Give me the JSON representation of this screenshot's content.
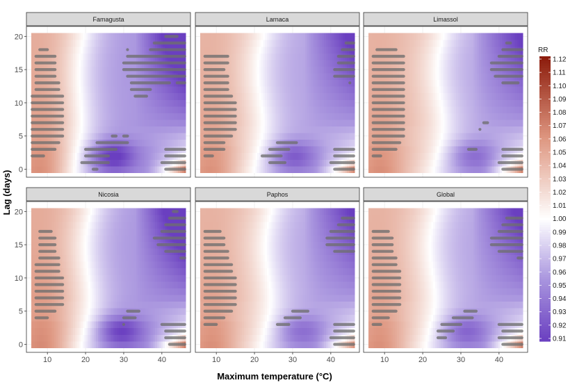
{
  "chart_data": {
    "type": "heatmap",
    "xlabel": "Maximum temperature (°C)",
    "ylabel": "Lag (days)",
    "xlim": [
      4.5,
      47.5
    ],
    "ylim": [
      -1.2,
      21.5
    ],
    "x_range": [
      6,
      46
    ],
    "y_range": [
      0,
      20
    ],
    "x_ticks": [
      10,
      20,
      30,
      40
    ],
    "y_ticks": [
      0,
      5,
      10,
      15,
      20
    ],
    "grid": true,
    "legend_position": "right",
    "colorbar": {
      "title": "RR",
      "min": 0.91,
      "max": 1.12,
      "ticks": [
        "1.12",
        "1.11",
        "1.10",
        "1.09",
        "1.08",
        "1.07",
        "1.06",
        "1.05",
        "1.04",
        "1.03",
        "1.02",
        "1.01",
        "1.00",
        "0.99",
        "0.98",
        "0.97",
        "0.96",
        "0.95",
        "0.94",
        "0.93",
        "0.92",
        "0.91"
      ],
      "low_color": "#6a3fc0",
      "mid_color": "#ffffff",
      "high_color": "#8b1a0a"
    },
    "panels": [
      {
        "name": "Famagusta",
        "params": {
          "xc": 19,
          "cw": 2.2,
          "cs": 1.0,
          "w": 0.045,
          "hot": 0.115,
          "hl": 0.05,
          "rot": 0.03,
          "lateCold": 0.085,
          "ec": 0.055
        },
        "sig": [
          {
            "lag": 18,
            "x0": 8,
            "x1": 10
          },
          {
            "lag": 17,
            "x0": 7,
            "x1": 12
          },
          {
            "lag": 16,
            "x0": 7,
            "x1": 12
          },
          {
            "lag": 15,
            "x0": 7,
            "x1": 12
          },
          {
            "lag": 14,
            "x0": 7,
            "x1": 12
          },
          {
            "lag": 13,
            "x0": 7,
            "x1": 13
          },
          {
            "lag": 12,
            "x0": 7,
            "x1": 13
          },
          {
            "lag": 11,
            "x0": 6,
            "x1": 14
          },
          {
            "lag": 10,
            "x0": 6,
            "x1": 14
          },
          {
            "lag": 9,
            "x0": 6,
            "x1": 14
          },
          {
            "lag": 8,
            "x0": 6,
            "x1": 14
          },
          {
            "lag": 7,
            "x0": 6,
            "x1": 14
          },
          {
            "lag": 6,
            "x0": 6,
            "x1": 14
          },
          {
            "lag": 5,
            "x0": 6,
            "x1": 14
          },
          {
            "lag": 4,
            "x0": 6,
            "x1": 13
          },
          {
            "lag": 3,
            "x0": 6,
            "x1": 12
          },
          {
            "lag": 2,
            "x0": 6,
            "x1": 9
          },
          {
            "lag": 20,
            "x0": 41,
            "x1": 44
          },
          {
            "lag": 19,
            "x0": 38,
            "x1": 46
          },
          {
            "lag": 18,
            "x0": 37,
            "x1": 46
          },
          {
            "lag": 17,
            "x0": 31,
            "x1": 46
          },
          {
            "lag": 16,
            "x0": 30,
            "x1": 46
          },
          {
            "lag": 15,
            "x0": 30,
            "x1": 46
          },
          {
            "lag": 14,
            "x0": 31,
            "x1": 46
          },
          {
            "lag": 13,
            "x0": 32,
            "x1": 42
          },
          {
            "lag": 12,
            "x0": 32,
            "x1": 37
          },
          {
            "lag": 11,
            "x0": 33,
            "x1": 36
          },
          {
            "lag": 13,
            "x0": 44,
            "x1": 46
          },
          {
            "lag": 18,
            "x0": 31,
            "x1": 31
          },
          {
            "lag": 5,
            "x0": 27,
            "x1": 28
          },
          {
            "lag": 5,
            "x0": 30,
            "x1": 31
          },
          {
            "lag": 4,
            "x0": 23,
            "x1": 31
          },
          {
            "lag": 3,
            "x0": 20,
            "x1": 28
          },
          {
            "lag": 2,
            "x0": 20,
            "x1": 26
          },
          {
            "lag": 1,
            "x0": 19,
            "x1": 26
          },
          {
            "lag": 0,
            "x0": 22,
            "x1": 23
          },
          {
            "lag": 3,
            "x0": 41,
            "x1": 46
          },
          {
            "lag": 2,
            "x0": 41,
            "x1": 46
          },
          {
            "lag": 1,
            "x0": 40,
            "x1": 46
          },
          {
            "lag": 0,
            "x0": 41,
            "x1": 46
          }
        ]
      },
      {
        "name": "Larnaca",
        "params": {
          "xc": 22,
          "cw": 1.2,
          "cs": 1.4,
          "w": 0.04,
          "hot": 0.105,
          "hl": 0.06,
          "rot": 0.05,
          "lateCold": 0.06,
          "ec": 0.04
        },
        "sig": [
          {
            "lag": 17,
            "x0": 7,
            "x1": 13
          },
          {
            "lag": 16,
            "x0": 7,
            "x1": 13
          },
          {
            "lag": 15,
            "x0": 7,
            "x1": 12
          },
          {
            "lag": 14,
            "x0": 7,
            "x1": 13
          },
          {
            "lag": 13,
            "x0": 7,
            "x1": 13
          },
          {
            "lag": 12,
            "x0": 7,
            "x1": 13
          },
          {
            "lag": 11,
            "x0": 7,
            "x1": 14
          },
          {
            "lag": 10,
            "x0": 7,
            "x1": 15
          },
          {
            "lag": 9,
            "x0": 7,
            "x1": 15
          },
          {
            "lag": 8,
            "x0": 7,
            "x1": 15
          },
          {
            "lag": 7,
            "x0": 7,
            "x1": 15
          },
          {
            "lag": 6,
            "x0": 7,
            "x1": 15
          },
          {
            "lag": 5,
            "x0": 7,
            "x1": 14
          },
          {
            "lag": 4,
            "x0": 7,
            "x1": 12
          },
          {
            "lag": 3,
            "x0": 7,
            "x1": 12
          },
          {
            "lag": 2,
            "x0": 7,
            "x1": 9
          },
          {
            "lag": 19,
            "x0": 44,
            "x1": 46
          },
          {
            "lag": 18,
            "x0": 43,
            "x1": 46
          },
          {
            "lag": 17,
            "x0": 42,
            "x1": 46
          },
          {
            "lag": 16,
            "x0": 42,
            "x1": 46
          },
          {
            "lag": 15,
            "x0": 41,
            "x1": 46
          },
          {
            "lag": 14,
            "x0": 41,
            "x1": 46
          },
          {
            "lag": 13,
            "x0": 45,
            "x1": 45
          },
          {
            "lag": 4,
            "x0": 26,
            "x1": 31
          },
          {
            "lag": 3,
            "x0": 24,
            "x1": 29
          },
          {
            "lag": 2,
            "x0": 22,
            "x1": 27
          },
          {
            "lag": 1,
            "x0": 24,
            "x1": 28
          },
          {
            "lag": 3,
            "x0": 41,
            "x1": 46
          },
          {
            "lag": 2,
            "x0": 41,
            "x1": 46
          },
          {
            "lag": 1,
            "x0": 40,
            "x1": 46
          },
          {
            "lag": 0,
            "x0": 41,
            "x1": 46
          }
        ]
      },
      {
        "name": "Limassol",
        "params": {
          "xc": 25,
          "cw": 1.0,
          "cs": 1.5,
          "w": 0.04,
          "hot": 0.108,
          "hl": 0.055,
          "rot": 0.04,
          "lateCold": 0.055,
          "ec": 0.03
        },
        "sig": [
          {
            "lag": 18,
            "x0": 8,
            "x1": 13
          },
          {
            "lag": 17,
            "x0": 7,
            "x1": 15
          },
          {
            "lag": 16,
            "x0": 7,
            "x1": 15
          },
          {
            "lag": 15,
            "x0": 7,
            "x1": 15
          },
          {
            "lag": 14,
            "x0": 7,
            "x1": 15
          },
          {
            "lag": 13,
            "x0": 7,
            "x1": 15
          },
          {
            "lag": 12,
            "x0": 7,
            "x1": 15
          },
          {
            "lag": 11,
            "x0": 7,
            "x1": 15
          },
          {
            "lag": 10,
            "x0": 7,
            "x1": 15
          },
          {
            "lag": 9,
            "x0": 7,
            "x1": 15
          },
          {
            "lag": 8,
            "x0": 7,
            "x1": 15
          },
          {
            "lag": 7,
            "x0": 7,
            "x1": 15
          },
          {
            "lag": 6,
            "x0": 7,
            "x1": 15
          },
          {
            "lag": 5,
            "x0": 7,
            "x1": 15
          },
          {
            "lag": 4,
            "x0": 7,
            "x1": 14
          },
          {
            "lag": 3,
            "x0": 7,
            "x1": 13
          },
          {
            "lag": 2,
            "x0": 7,
            "x1": 9
          },
          {
            "lag": 19,
            "x0": 42,
            "x1": 43
          },
          {
            "lag": 18,
            "x0": 41,
            "x1": 46
          },
          {
            "lag": 17,
            "x0": 40,
            "x1": 46
          },
          {
            "lag": 16,
            "x0": 38,
            "x1": 46
          },
          {
            "lag": 15,
            "x0": 38,
            "x1": 46
          },
          {
            "lag": 14,
            "x0": 39,
            "x1": 46
          },
          {
            "lag": 13,
            "x0": 41,
            "x1": 45
          },
          {
            "lag": 7,
            "x0": 36,
            "x1": 37
          },
          {
            "lag": 6,
            "x0": 35,
            "x1": 35
          },
          {
            "lag": 3,
            "x0": 32,
            "x1": 34
          },
          {
            "lag": 3,
            "x0": 41,
            "x1": 46
          },
          {
            "lag": 2,
            "x0": 41,
            "x1": 46
          },
          {
            "lag": 1,
            "x0": 40,
            "x1": 46
          },
          {
            "lag": 0,
            "x0": 41,
            "x1": 46
          }
        ]
      },
      {
        "name": "Nicosia",
        "params": {
          "xc": 21,
          "cw": 2.0,
          "cs": 1.3,
          "w": 0.045,
          "hot": 0.115,
          "hl": 0.06,
          "rot": 0.035,
          "lateCold": 0.08,
          "ec": 0.05
        },
        "sig": [
          {
            "lag": 17,
            "x0": 8,
            "x1": 11
          },
          {
            "lag": 16,
            "x0": 8,
            "x1": 12
          },
          {
            "lag": 15,
            "x0": 8,
            "x1": 12
          },
          {
            "lag": 14,
            "x0": 8,
            "x1": 12
          },
          {
            "lag": 13,
            "x0": 8,
            "x1": 13
          },
          {
            "lag": 12,
            "x0": 7,
            "x1": 13
          },
          {
            "lag": 11,
            "x0": 7,
            "x1": 13
          },
          {
            "lag": 10,
            "x0": 7,
            "x1": 14
          },
          {
            "lag": 9,
            "x0": 7,
            "x1": 14
          },
          {
            "lag": 8,
            "x0": 7,
            "x1": 14
          },
          {
            "lag": 7,
            "x0": 7,
            "x1": 14
          },
          {
            "lag": 6,
            "x0": 7,
            "x1": 14
          },
          {
            "lag": 5,
            "x0": 7,
            "x1": 12
          },
          {
            "lag": 4,
            "x0": 7,
            "x1": 10
          },
          {
            "lag": 20,
            "x0": 43,
            "x1": 44
          },
          {
            "lag": 19,
            "x0": 42,
            "x1": 46
          },
          {
            "lag": 18,
            "x0": 41,
            "x1": 46
          },
          {
            "lag": 17,
            "x0": 40,
            "x1": 46
          },
          {
            "lag": 16,
            "x0": 38,
            "x1": 46
          },
          {
            "lag": 15,
            "x0": 39,
            "x1": 46
          },
          {
            "lag": 14,
            "x0": 41,
            "x1": 46
          },
          {
            "lag": 13,
            "x0": 45,
            "x1": 46
          },
          {
            "lag": 5,
            "x0": 31,
            "x1": 34
          },
          {
            "lag": 4,
            "x0": 30,
            "x1": 33
          },
          {
            "lag": 3,
            "x0": 30,
            "x1": 30
          },
          {
            "lag": 3,
            "x0": 40,
            "x1": 46
          },
          {
            "lag": 2,
            "x0": 41,
            "x1": 46
          },
          {
            "lag": 1,
            "x0": 41,
            "x1": 46
          },
          {
            "lag": 0,
            "x0": 42,
            "x1": 46
          }
        ]
      },
      {
        "name": "Paphos",
        "params": {
          "xc": 24,
          "cw": 1.1,
          "cs": 1.4,
          "w": 0.04,
          "hot": 0.1,
          "hl": 0.055,
          "rot": 0.04,
          "lateCold": 0.055,
          "ec": 0.03
        },
        "sig": [
          {
            "lag": 17,
            "x0": 7,
            "x1": 11
          },
          {
            "lag": 16,
            "x0": 7,
            "x1": 12
          },
          {
            "lag": 15,
            "x0": 7,
            "x1": 12
          },
          {
            "lag": 14,
            "x0": 7,
            "x1": 13
          },
          {
            "lag": 13,
            "x0": 7,
            "x1": 13
          },
          {
            "lag": 12,
            "x0": 7,
            "x1": 14
          },
          {
            "lag": 11,
            "x0": 7,
            "x1": 14
          },
          {
            "lag": 10,
            "x0": 7,
            "x1": 15
          },
          {
            "lag": 9,
            "x0": 7,
            "x1": 15
          },
          {
            "lag": 8,
            "x0": 7,
            "x1": 15
          },
          {
            "lag": 7,
            "x0": 7,
            "x1": 15
          },
          {
            "lag": 6,
            "x0": 7,
            "x1": 15
          },
          {
            "lag": 5,
            "x0": 7,
            "x1": 14
          },
          {
            "lag": 4,
            "x0": 7,
            "x1": 12
          },
          {
            "lag": 3,
            "x0": 7,
            "x1": 10
          },
          {
            "lag": 19,
            "x0": 43,
            "x1": 46
          },
          {
            "lag": 18,
            "x0": 42,
            "x1": 46
          },
          {
            "lag": 17,
            "x0": 40,
            "x1": 46
          },
          {
            "lag": 16,
            "x0": 39,
            "x1": 46
          },
          {
            "lag": 15,
            "x0": 39,
            "x1": 46
          },
          {
            "lag": 14,
            "x0": 41,
            "x1": 46
          },
          {
            "lag": 5,
            "x0": 30,
            "x1": 34
          },
          {
            "lag": 4,
            "x0": 28,
            "x1": 32
          },
          {
            "lag": 3,
            "x0": 26,
            "x1": 29
          },
          {
            "lag": 3,
            "x0": 41,
            "x1": 46
          },
          {
            "lag": 2,
            "x0": 41,
            "x1": 46
          },
          {
            "lag": 1,
            "x0": 40,
            "x1": 46
          },
          {
            "lag": 0,
            "x0": 41,
            "x1": 46
          }
        ]
      },
      {
        "name": "Global",
        "params": {
          "xc": 23,
          "cw": 1.2,
          "cs": 1.4,
          "w": 0.04,
          "hot": 0.108,
          "hl": 0.055,
          "rot": 0.04,
          "lateCold": 0.06,
          "ec": 0.035
        },
        "sig": [
          {
            "lag": 17,
            "x0": 7,
            "x1": 11
          },
          {
            "lag": 16,
            "x0": 7,
            "x1": 12
          },
          {
            "lag": 15,
            "x0": 7,
            "x1": 12
          },
          {
            "lag": 14,
            "x0": 7,
            "x1": 12
          },
          {
            "lag": 13,
            "x0": 7,
            "x1": 13
          },
          {
            "lag": 12,
            "x0": 7,
            "x1": 13
          },
          {
            "lag": 11,
            "x0": 7,
            "x1": 14
          },
          {
            "lag": 10,
            "x0": 7,
            "x1": 14
          },
          {
            "lag": 9,
            "x0": 7,
            "x1": 14
          },
          {
            "lag": 8,
            "x0": 7,
            "x1": 14
          },
          {
            "lag": 7,
            "x0": 7,
            "x1": 14
          },
          {
            "lag": 6,
            "x0": 7,
            "x1": 14
          },
          {
            "lag": 5,
            "x0": 7,
            "x1": 13
          },
          {
            "lag": 4,
            "x0": 7,
            "x1": 11
          },
          {
            "lag": 3,
            "x0": 7,
            "x1": 9
          },
          {
            "lag": 19,
            "x0": 42,
            "x1": 46
          },
          {
            "lag": 18,
            "x0": 41,
            "x1": 46
          },
          {
            "lag": 17,
            "x0": 40,
            "x1": 46
          },
          {
            "lag": 16,
            "x0": 38,
            "x1": 46
          },
          {
            "lag": 15,
            "x0": 38,
            "x1": 46
          },
          {
            "lag": 14,
            "x0": 40,
            "x1": 46
          },
          {
            "lag": 13,
            "x0": 45,
            "x1": 46
          },
          {
            "lag": 5,
            "x0": 31,
            "x1": 34
          },
          {
            "lag": 4,
            "x0": 28,
            "x1": 33
          },
          {
            "lag": 3,
            "x0": 25,
            "x1": 30
          },
          {
            "lag": 2,
            "x0": 24,
            "x1": 28
          },
          {
            "lag": 1,
            "x0": 24,
            "x1": 26
          },
          {
            "lag": 3,
            "x0": 40,
            "x1": 46
          },
          {
            "lag": 2,
            "x0": 41,
            "x1": 46
          },
          {
            "lag": 1,
            "x0": 40,
            "x1": 46
          },
          {
            "lag": 0,
            "x0": 41,
            "x1": 46
          }
        ]
      }
    ]
  }
}
